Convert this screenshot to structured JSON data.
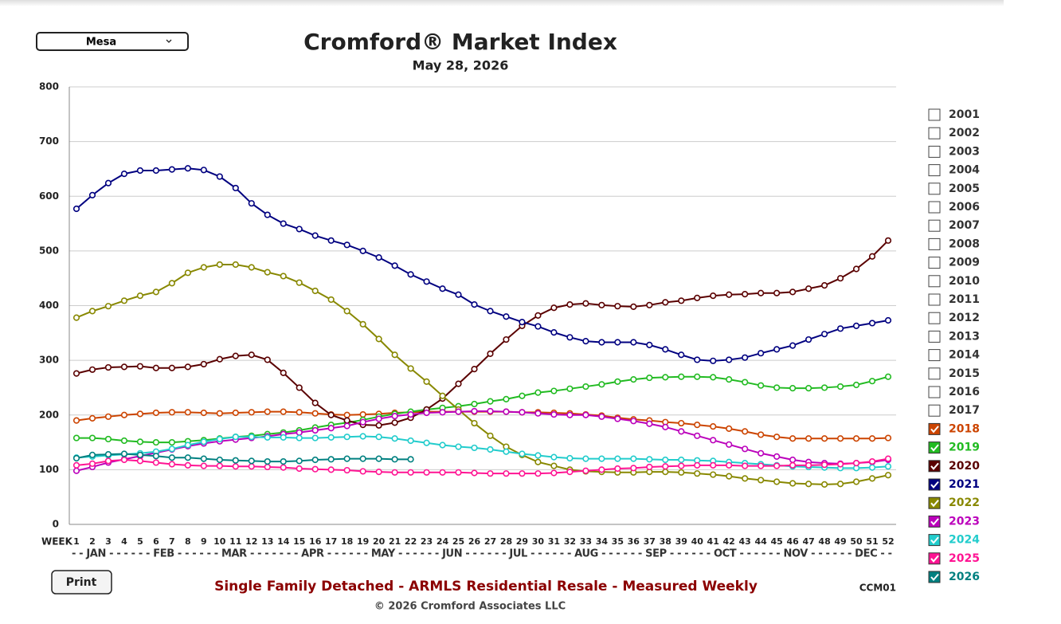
{
  "market_select": "Mesa",
  "print_button": "Print",
  "chart_data": {
    "type": "line",
    "title": "Cromford® Market Index",
    "subtitle": "May 28, 2026",
    "x_label": "WEEK",
    "month_axis": "- - JAN - - - - - - FEB - - - - - - MAR - - - - - - - APR - - - - - - MAY - - - - - - JUN - - - - - - JUL - - - - - - AUG - - - - - - SEP - - - - - - OCT - - - - - - NOV - - - - - - DEC - -",
    "footer": "Single Family Detached - ARMLS Residential Resale - Measured Weekly",
    "code": "CCM01",
    "copyright": "© 2026 Cromford Associates LLC",
    "categories": [
      1,
      2,
      3,
      4,
      5,
      6,
      7,
      8,
      9,
      10,
      11,
      12,
      13,
      14,
      15,
      16,
      17,
      18,
      19,
      20,
      21,
      22,
      23,
      24,
      25,
      26,
      27,
      28,
      29,
      30,
      31,
      32,
      33,
      34,
      35,
      36,
      37,
      38,
      39,
      40,
      41,
      42,
      43,
      44,
      45,
      46,
      47,
      48,
      49,
      50,
      51,
      52
    ],
    "ylim": [
      0,
      800
    ],
    "yticks": [
      0,
      100,
      200,
      300,
      400,
      500,
      600,
      700,
      800
    ],
    "grid": true,
    "legend_unchecked": [
      "2001",
      "2002",
      "2003",
      "2004",
      "2005",
      "2006",
      "2007",
      "2008",
      "2009",
      "2010",
      "2011",
      "2012",
      "2013",
      "2014",
      "2015",
      "2016",
      "2017"
    ],
    "series": [
      {
        "name": "2018",
        "color": "#cc4400",
        "values": [
          190,
          194,
          197,
          200,
          202,
          204,
          205,
          205,
          204,
          203,
          204,
          205,
          206,
          206,
          205,
          203,
          201,
          200,
          201,
          202,
          204,
          205,
          206,
          206,
          206,
          206,
          206,
          206,
          205,
          205,
          204,
          203,
          201,
          199,
          195,
          192,
          190,
          187,
          185,
          182,
          179,
          175,
          170,
          164,
          160,
          157,
          157,
          157,
          157,
          157,
          157,
          158
        ]
      },
      {
        "name": "2019",
        "color": "#22bb22",
        "values": [
          158,
          158,
          156,
          153,
          151,
          150,
          150,
          152,
          154,
          157,
          160,
          162,
          165,
          168,
          172,
          177,
          182,
          186,
          191,
          197,
          202,
          206,
          210,
          213,
          216,
          220,
          225,
          229,
          235,
          241,
          244,
          248,
          252,
          256,
          261,
          265,
          268,
          269,
          270,
          270,
          269,
          265,
          260,
          254,
          250,
          249,
          249,
          250,
          252,
          255,
          262,
          270
        ]
      },
      {
        "name": "2020",
        "color": "#5a0000",
        "values": [
          276,
          283,
          287,
          288,
          289,
          286,
          286,
          288,
          293,
          302,
          308,
          310,
          301,
          277,
          250,
          222,
          200,
          190,
          182,
          181,
          186,
          195,
          210,
          230,
          257,
          284,
          312,
          338,
          363,
          382,
          396,
          402,
          404,
          401,
          399,
          398,
          401,
          406,
          409,
          414,
          418,
          420,
          421,
          423,
          423,
          425,
          431,
          437,
          450,
          467,
          490,
          519
        ]
      },
      {
        "name": "2021",
        "color": "#000080",
        "values": [
          577,
          602,
          624,
          641,
          647,
          647,
          649,
          651,
          648,
          636,
          615,
          587,
          566,
          550,
          540,
          528,
          519,
          511,
          500,
          488,
          473,
          457,
          444,
          431,
          420,
          402,
          390,
          380,
          370,
          362,
          351,
          342,
          335,
          333,
          333,
          333,
          328,
          320,
          310,
          301,
          299,
          301,
          305,
          313,
          320,
          327,
          338,
          348,
          358,
          363,
          368,
          373
        ]
      },
      {
        "name": "2022",
        "color": "#888800",
        "values": [
          378,
          390,
          399,
          409,
          418,
          425,
          441,
          460,
          470,
          475,
          475,
          470,
          461,
          454,
          442,
          427,
          411,
          390,
          366,
          339,
          310,
          285,
          261,
          235,
          210,
          185,
          162,
          142,
          127,
          114,
          107,
          100,
          97,
          96,
          95,
          95,
          96,
          96,
          95,
          93,
          91,
          88,
          84,
          81,
          78,
          75,
          74,
          73,
          74,
          78,
          84,
          90
        ]
      },
      {
        "name": "2023",
        "color": "#bb00bb",
        "values": [
          98,
          105,
          113,
          119,
          125,
          131,
          137,
          143,
          148,
          152,
          155,
          158,
          161,
          165,
          168,
          172,
          176,
          180,
          187,
          193,
          198,
          201,
          204,
          205,
          206,
          207,
          207,
          206,
          205,
          203,
          201,
          200,
          200,
          197,
          193,
          189,
          184,
          178,
          170,
          162,
          154,
          146,
          138,
          130,
          124,
          118,
          114,
          112,
          111,
          112,
          114,
          118
        ]
      },
      {
        "name": "2024",
        "color": "#22cccc",
        "values": [
          122,
          124,
          126,
          128,
          130,
          133,
          138,
          145,
          151,
          156,
          160,
          160,
          159,
          159,
          158,
          158,
          159,
          160,
          161,
          160,
          157,
          153,
          149,
          145,
          142,
          140,
          137,
          133,
          129,
          126,
          123,
          121,
          120,
          120,
          120,
          120,
          119,
          118,
          118,
          117,
          116,
          114,
          112,
          110,
          108,
          106,
          105,
          104,
          103,
          103,
          104,
          106
        ]
      },
      {
        "name": "2025",
        "color": "#ff1493",
        "values": [
          108,
          111,
          116,
          118,
          116,
          113,
          110,
          108,
          107,
          107,
          106,
          106,
          105,
          104,
          102,
          101,
          100,
          99,
          97,
          96,
          95,
          95,
          95,
          95,
          95,
          94,
          93,
          93,
          93,
          93,
          94,
          96,
          98,
          100,
          102,
          103,
          105,
          106,
          107,
          108,
          108,
          108,
          107,
          107,
          107,
          108,
          108,
          109,
          110,
          112,
          115,
          120
        ]
      },
      {
        "name": "2026",
        "color": "#008080",
        "values": [
          121,
          127,
          128,
          129,
          127,
          125,
          122,
          122,
          120,
          118,
          117,
          116,
          115,
          115,
          116,
          118,
          119,
          120,
          120,
          120,
          119,
          119,
          null,
          null,
          null,
          null,
          null,
          null,
          null,
          null,
          null,
          null,
          null,
          null,
          null,
          null,
          null,
          null,
          null,
          null,
          null,
          null,
          null,
          null,
          null,
          null,
          null,
          null,
          null,
          null,
          null,
          null
        ]
      }
    ]
  }
}
